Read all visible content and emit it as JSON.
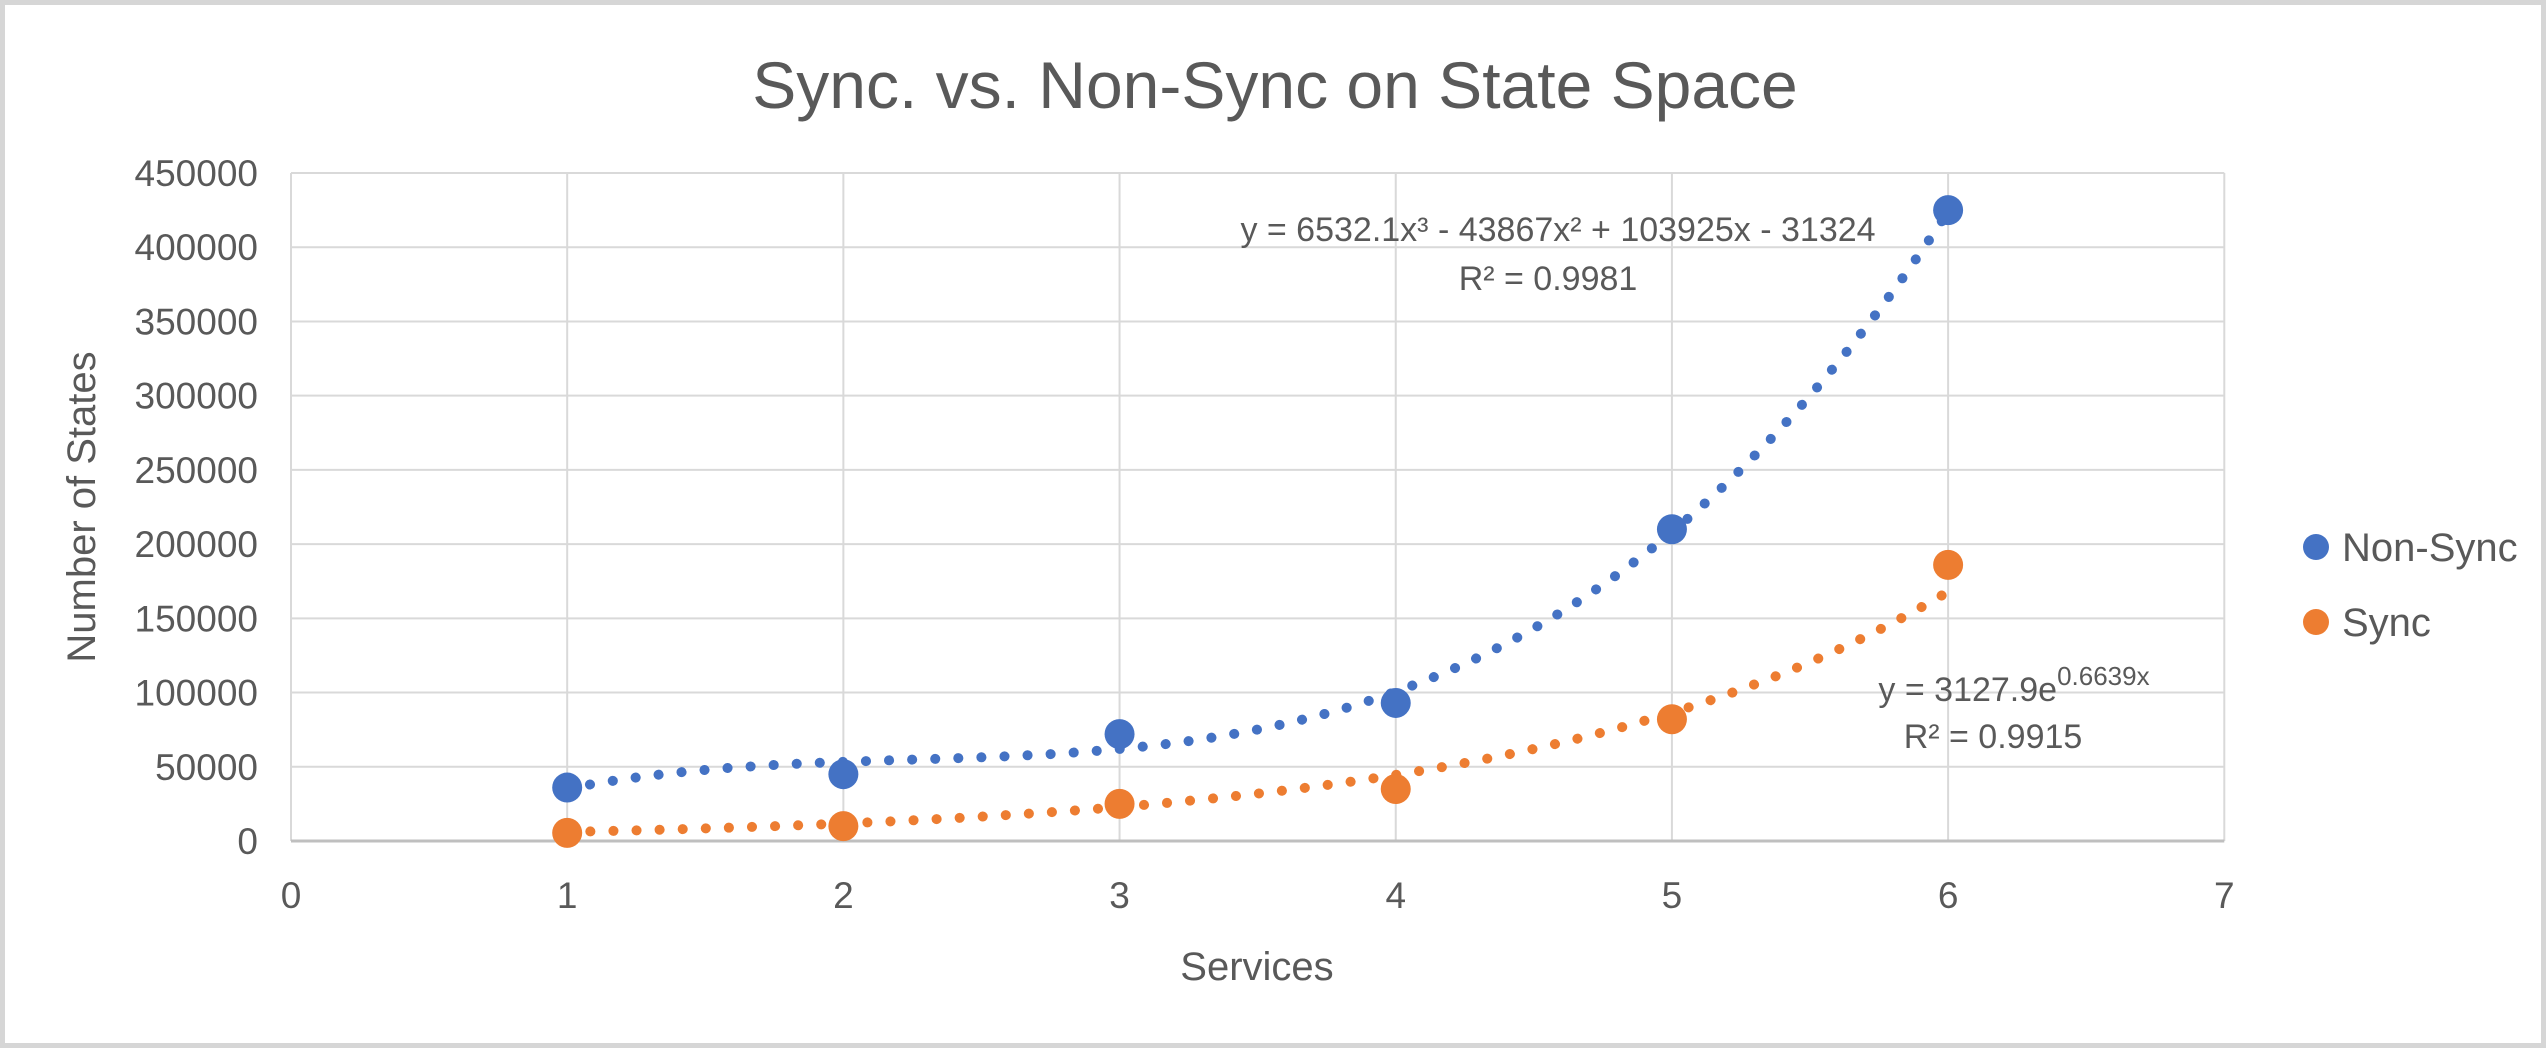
{
  "chart": {
    "title": "Sync. vs. Non-Sync on State Space",
    "x_axis_label": "Services",
    "y_axis_label": "Number of States"
  },
  "annotations": {
    "nonsync_equation": "y = 6532.1x³ - 43867x² + 103925x - 31324",
    "nonsync_r2": "R² = 0.9981",
    "sync_equation_base": "y = 3127.9e",
    "sync_equation_exponent": "0.6639x",
    "sync_r2": "R² = 0.9915"
  },
  "legend": {
    "position": "right",
    "items": [
      {
        "label": "Non-Sync",
        "color": "#4472C4",
        "marker": "circle-icon"
      },
      {
        "label": "Sync",
        "color": "#ED7D31",
        "marker": "circle-icon"
      }
    ]
  },
  "colors": {
    "nonsync_series": "#4472C4",
    "sync_series": "#ED7D31",
    "gridline": "#D9D9D9",
    "axis_line": "#BFBFBF",
    "text": "#595959",
    "frame_border": "#D6D6D6",
    "background": "#FFFFFF"
  },
  "chart_data": {
    "type": "scatter",
    "title": "Sync. vs. Non-Sync on State Space",
    "xlabel": "Services",
    "ylabel": "Number of States",
    "xlim": [
      0,
      7
    ],
    "ylim": [
      0,
      450000
    ],
    "x_ticks": [
      0,
      1,
      2,
      3,
      4,
      5,
      6,
      7
    ],
    "y_ticks": [
      0,
      50000,
      100000,
      150000,
      200000,
      250000,
      300000,
      350000,
      400000,
      450000
    ],
    "grid": true,
    "legend_position": "right",
    "series": [
      {
        "name": "Non-Sync",
        "color": "#4472C4",
        "marker_style": "dot",
        "x": [
          1,
          2,
          3,
          4,
          5,
          6
        ],
        "y": [
          36000,
          45000,
          72000,
          93000,
          210000,
          425000
        ],
        "trendline": {
          "type": "polynomial",
          "degree": 3,
          "coefficients": [
            6532.1,
            -43867,
            103925,
            -31324
          ],
          "r2": 0.9981,
          "style": "dotted",
          "x_range": [
            1,
            6
          ]
        }
      },
      {
        "name": "Sync",
        "color": "#ED7D31",
        "marker_style": "dot",
        "x": [
          1,
          2,
          3,
          4,
          5,
          6
        ],
        "y": [
          5500,
          10000,
          25000,
          35000,
          82000,
          186000
        ],
        "trendline": {
          "type": "exponential",
          "a": 3127.9,
          "b": 0.6639,
          "r2": 0.9915,
          "style": "dotted",
          "x_range": [
            1,
            6
          ]
        }
      }
    ]
  }
}
